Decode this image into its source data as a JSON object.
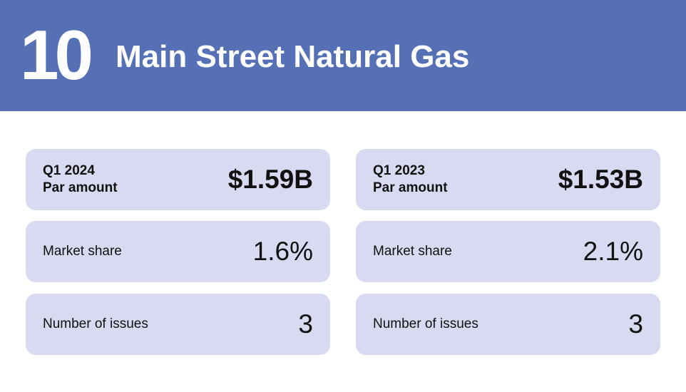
{
  "header": {
    "rank": "10",
    "title": "Main Street Natural Gas"
  },
  "left": {
    "period": "Q1 2024",
    "par_label": "Par amount",
    "par_value": "$1.59B",
    "share_label": "Market share",
    "share_value": "1.6%",
    "issues_label": "Number of issues",
    "issues_value": "3"
  },
  "right": {
    "period": "Q1 2023",
    "par_label": "Par amount",
    "par_value": "$1.53B",
    "share_label": "Market share",
    "share_value": "2.1%",
    "issues_label": "Number of issues",
    "issues_value": "3"
  },
  "colors": {
    "header_bg": "#5670b5",
    "card_bg": "#d7daf0"
  }
}
